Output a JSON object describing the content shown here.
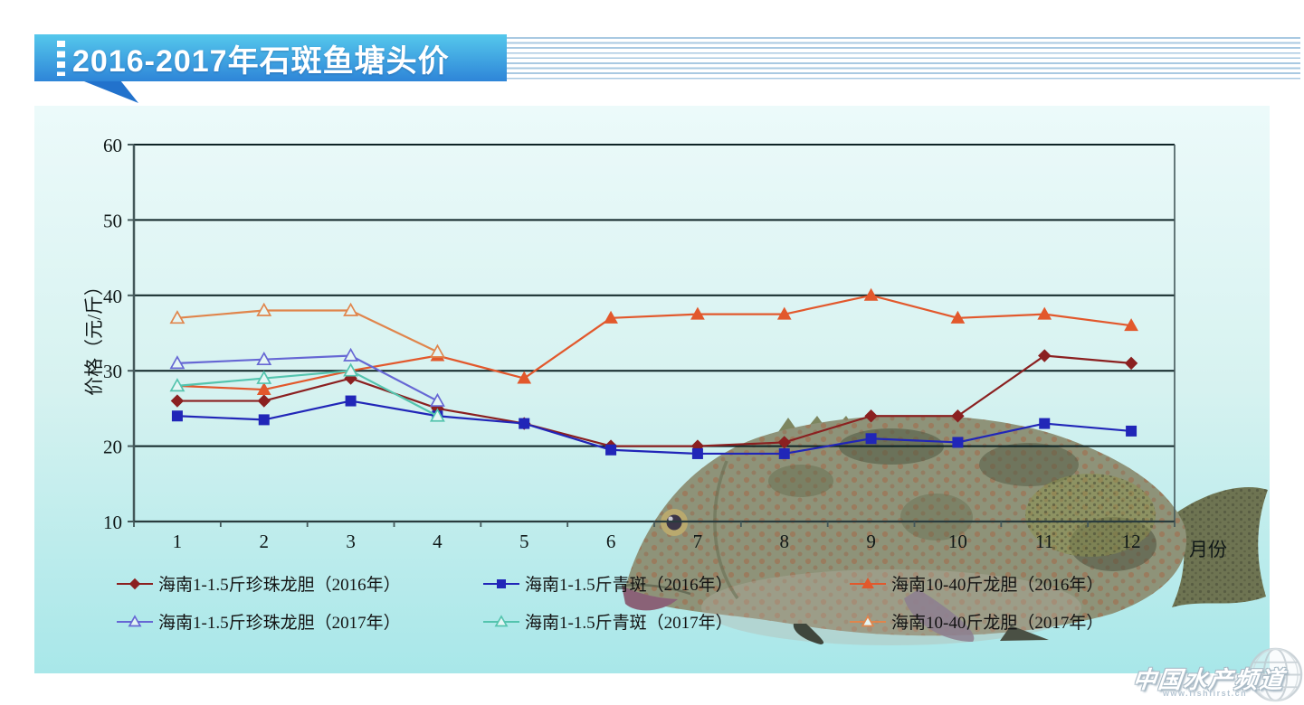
{
  "title": {
    "text": "2016-2017年石斑鱼塘头价"
  },
  "watermark": {
    "name": "中国水产频道",
    "url": "www.fishfirst.cn"
  },
  "theme": {
    "banner_top": "#55c8ec",
    "banner_bottom": "#2e85d8",
    "banner_tail": "#2272cc",
    "pinstripe": "#a9c9e2",
    "panel_top": "#ecfafa",
    "panel_mid": "#d6f2f0",
    "panel_bottom": "#a8e7e9",
    "grid": "#0f2426",
    "axis": "#44585a",
    "text": "#101818"
  },
  "chart_data": {
    "type": "line",
    "x": [
      "1",
      "2",
      "3",
      "4",
      "5",
      "6",
      "7",
      "8",
      "9",
      "10",
      "11",
      "12"
    ],
    "xlabel": "月份",
    "ylabel": "价格（元/斤）",
    "ylim": [
      10,
      60
    ],
    "y_ticks": [
      10,
      20,
      30,
      40,
      50,
      60
    ],
    "grid": true,
    "legend_position": "bottom",
    "series": [
      {
        "name": "海南1-1.5斤珍珠龙胆（2016年）",
        "color": "#8b2020",
        "marker": "diamond",
        "fill": true,
        "values": [
          26,
          26,
          29,
          25,
          23,
          20,
          20,
          20.5,
          24,
          24,
          32,
          31
        ]
      },
      {
        "name": "海南1-1.5斤青斑（2016年）",
        "color": "#2126b8",
        "marker": "square",
        "fill": true,
        "values": [
          24,
          23.5,
          26,
          24,
          23,
          19.5,
          19,
          19,
          21,
          20.5,
          23,
          22
        ]
      },
      {
        "name": "海南10-40斤龙胆（2016年）",
        "color": "#e2582c",
        "marker": "triangle",
        "fill": true,
        "values": [
          28,
          27.5,
          30,
          32,
          29,
          37,
          37.5,
          37.5,
          40,
          37,
          37.5,
          36
        ]
      },
      {
        "name": "海南1-1.5斤珍珠龙胆（2017年）",
        "color": "#6667d4",
        "marker": "triangle",
        "fill": false,
        "values": [
          31,
          31.5,
          32,
          26,
          null,
          null,
          null,
          null,
          null,
          null,
          null,
          null
        ]
      },
      {
        "name": "海南1-1.5斤青斑（2017年）",
        "color": "#54c4ae",
        "marker": "triangle",
        "fill": false,
        "values": [
          28,
          29,
          30,
          24,
          null,
          null,
          null,
          null,
          null,
          null,
          null,
          null
        ]
      },
      {
        "name": "海南10-40斤龙胆（2017年）",
        "color": "#e0854c",
        "marker": "triangle",
        "fill": false,
        "values": [
          37,
          38,
          38,
          32.5,
          null,
          null,
          null,
          null,
          null,
          null,
          null,
          null
        ]
      }
    ]
  }
}
